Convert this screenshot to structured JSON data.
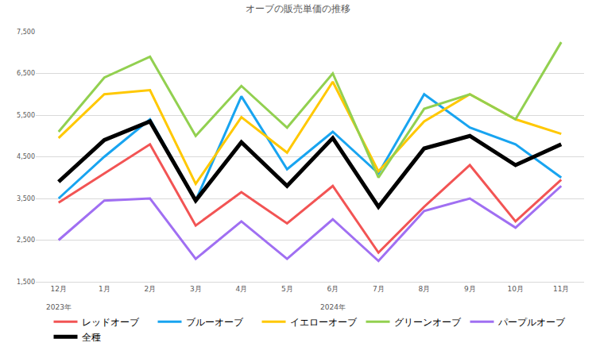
{
  "chart_data": {
    "type": "line",
    "title": "オーブの販売単価の推移",
    "categories": [
      "12月",
      "1月",
      "2月",
      "3月",
      "4月",
      "5月",
      "6月",
      "7月",
      "8月",
      "9月",
      "10月",
      "11月"
    ],
    "annotations": [
      {
        "text": "2023年",
        "x": "12月"
      },
      {
        "text": "2024年",
        "x": "6月"
      }
    ],
    "series": [
      {
        "name": "レッドオーブ",
        "color": "#f25454",
        "values": [
          3400,
          4100,
          4800,
          2850,
          3650,
          2900,
          3800,
          2200,
          3300,
          4300,
          2950,
          3950
        ]
      },
      {
        "name": "ブルーオーブ",
        "color": "#18a4f0",
        "values": [
          3500,
          4500,
          5400,
          3450,
          5950,
          4200,
          5100,
          4100,
          6000,
          5200,
          4800,
          4000
        ]
      },
      {
        "name": "イエローオーブ",
        "color": "#ffc800",
        "values": [
          4950,
          6000,
          6100,
          3850,
          5450,
          4600,
          6300,
          4150,
          5350,
          6000,
          5400,
          5050
        ]
      },
      {
        "name": "グリーンオーブ",
        "color": "#92d050",
        "values": [
          5100,
          6400,
          6900,
          5000,
          6200,
          5200,
          6500,
          4000,
          5650,
          6000,
          5400,
          7250
        ]
      },
      {
        "name": "パープルオーブ",
        "color": "#a06ff2",
        "values": [
          2500,
          3450,
          3500,
          2050,
          2950,
          2050,
          3000,
          2000,
          3200,
          3500,
          2800,
          3800
        ]
      },
      {
        "name": "全種",
        "color": "#000000",
        "values": [
          3900,
          4900,
          5350,
          3450,
          4850,
          3800,
          4950,
          3300,
          4700,
          5000,
          4300,
          4800
        ]
      }
    ],
    "ylim": [
      1500,
      7500
    ],
    "yticks": [
      {
        "value": 1500,
        "label": "1,500"
      },
      {
        "value": 2500,
        "label": "2,500"
      },
      {
        "value": 3500,
        "label": "3,500"
      },
      {
        "value": 4500,
        "label": "4,500"
      },
      {
        "value": 5500,
        "label": "5,500"
      },
      {
        "value": 6500,
        "label": "6,500"
      },
      {
        "value": 7500,
        "label": "7,500"
      }
    ],
    "grid": true,
    "legend": "bottom"
  }
}
